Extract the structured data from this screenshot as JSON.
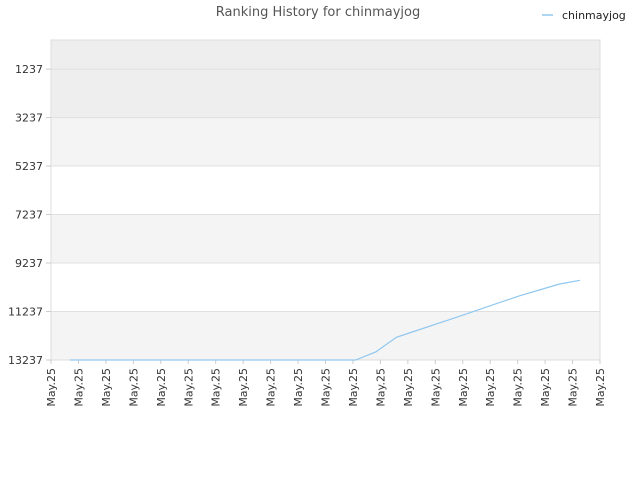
{
  "chart_data": {
    "type": "line",
    "title": "Ranking History for chinmayjog",
    "xlabel": "",
    "ylabel": "",
    "y_inverted": true,
    "ylim": [
      13237,
      1237
    ],
    "y_ticks": [
      "1237",
      "3237",
      "5237",
      "7237",
      "9237",
      "11237",
      "13237"
    ],
    "x_ticks": [
      "May.25",
      "May.25",
      "May.25",
      "May.25",
      "May.25",
      "May.25",
      "May.25",
      "May.25",
      "May.25",
      "May.25",
      "May.25",
      "May.25",
      "May.25",
      "May.25",
      "May.25",
      "May.25",
      "May.25",
      "May.25",
      "May.25",
      "May.25",
      "May.25"
    ],
    "grid": true,
    "legend_position": "top-right",
    "series": [
      {
        "name": "chinmayjog",
        "color": "#90c8f0",
        "values": [
          13237,
          13237,
          13237,
          13237,
          13237,
          13237,
          13237,
          13237,
          13237,
          13237,
          13237,
          13237,
          13237,
          13237,
          13237,
          12900,
          12300,
          12020,
          11740,
          11460,
          11170,
          10880,
          10600,
          10350,
          10100,
          9950
        ]
      }
    ],
    "band_colors": [
      "#eeeeee",
      "#f4f4f4",
      "#ffffff"
    ]
  }
}
